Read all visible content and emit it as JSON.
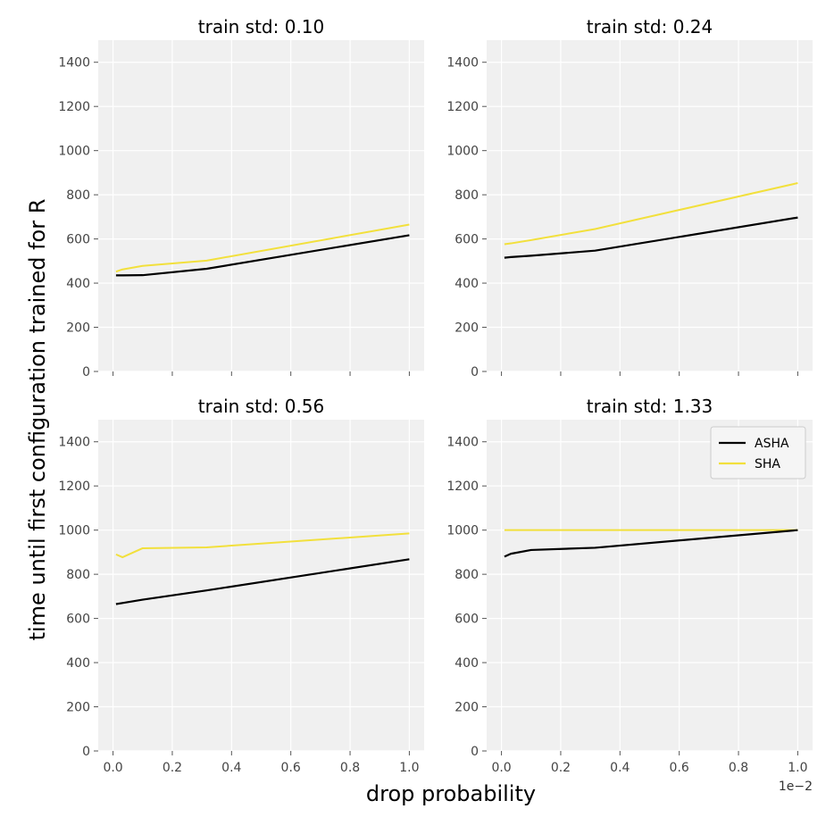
{
  "figure": {
    "ylabel": "time until first configuration trained for R",
    "xlabel": "drop probability",
    "offset_text": "1e−2"
  },
  "colors": {
    "ASHA": "#000000",
    "SHA": "#f2e03c",
    "panel_bg": "#f0f0f0",
    "grid": "#ffffff",
    "tick": "#555555"
  },
  "chart_data": [
    {
      "type": "line",
      "title": "train std: 0.10",
      "xlim": [
        -0.05,
        1.05
      ],
      "ylim": [
        0,
        1500
      ],
      "xticks": [
        "0.0",
        "0.2",
        "0.4",
        "0.6",
        "0.8",
        "1.0"
      ],
      "yticks": [
        "0",
        "200",
        "400",
        "600",
        "800",
        "1000",
        "1200",
        "1400"
      ],
      "series": [
        {
          "name": "ASHA",
          "x": [
            0.01,
            0.032,
            0.1,
            0.316,
            1.0
          ],
          "values": [
            435,
            435,
            436,
            465,
            617
          ]
        },
        {
          "name": "SHA",
          "x": [
            0.01,
            0.032,
            0.1,
            0.316,
            1.0
          ],
          "values": [
            452,
            462,
            478,
            502,
            665
          ]
        }
      ]
    },
    {
      "type": "line",
      "title": "train std: 0.24",
      "xlim": [
        -0.05,
        1.05
      ],
      "ylim": [
        0,
        1500
      ],
      "xticks": [
        "0.0",
        "0.2",
        "0.4",
        "0.6",
        "0.8",
        "1.0"
      ],
      "yticks": [
        "0",
        "200",
        "400",
        "600",
        "800",
        "1000",
        "1200",
        "1400"
      ],
      "series": [
        {
          "name": "ASHA",
          "x": [
            0.01,
            0.032,
            0.1,
            0.316,
            1.0
          ],
          "values": [
            515,
            518,
            524,
            547,
            697
          ]
        },
        {
          "name": "SHA",
          "x": [
            0.01,
            0.032,
            0.1,
            0.316,
            1.0
          ],
          "values": [
            576,
            580,
            595,
            645,
            853
          ]
        }
      ]
    },
    {
      "type": "line",
      "title": "train std: 0.56",
      "xlim": [
        -0.05,
        1.05
      ],
      "ylim": [
        0,
        1500
      ],
      "xticks": [
        "0.0",
        "0.2",
        "0.4",
        "0.6",
        "0.8",
        "1.0"
      ],
      "yticks": [
        "0",
        "200",
        "400",
        "600",
        "800",
        "1000",
        "1200",
        "1400"
      ],
      "series": [
        {
          "name": "ASHA",
          "x": [
            0.01,
            0.032,
            0.1,
            0.316,
            1.0
          ],
          "values": [
            665,
            670,
            685,
            727,
            868
          ]
        },
        {
          "name": "SHA",
          "x": [
            0.01,
            0.032,
            0.1,
            0.316,
            1.0
          ],
          "values": [
            890,
            877,
            918,
            922,
            985
          ]
        }
      ]
    },
    {
      "type": "line",
      "title": "train std: 1.33",
      "xlim": [
        -0.05,
        1.05
      ],
      "ylim": [
        0,
        1500
      ],
      "xticks": [
        "0.0",
        "0.2",
        "0.4",
        "0.6",
        "0.8",
        "1.0"
      ],
      "yticks": [
        "0",
        "200",
        "400",
        "600",
        "800",
        "1000",
        "1200",
        "1400"
      ],
      "legend": {
        "position": "top-right",
        "entries": [
          "ASHA",
          "SHA"
        ]
      },
      "series": [
        {
          "name": "ASHA",
          "x": [
            0.01,
            0.032,
            0.1,
            0.316,
            1.0
          ],
          "values": [
            880,
            893,
            910,
            920,
            1000
          ]
        },
        {
          "name": "SHA",
          "x": [
            0.01,
            0.032,
            0.1,
            0.316,
            1.0
          ],
          "values": [
            1000,
            1000,
            1000,
            1000,
            1000
          ]
        }
      ]
    }
  ]
}
